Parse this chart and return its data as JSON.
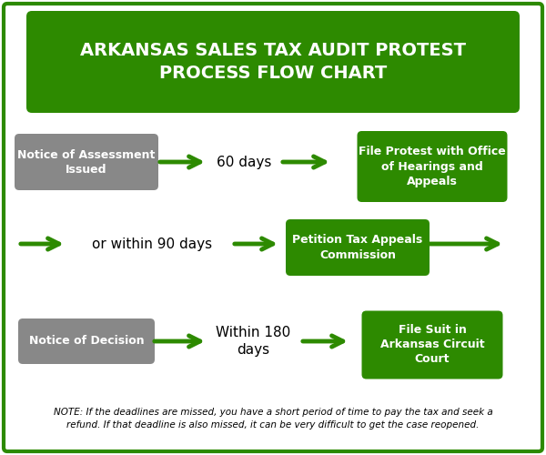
{
  "title": "ARKANSAS SALES TAX AUDIT PROTEST\nPROCESS FLOW CHART",
  "title_bg": "#2d8a00",
  "title_color": "#ffffff",
  "border_color": "#2d8a00",
  "bg_color": "#ffffff",
  "green": "#2d8a00",
  "gray": "#888888",
  "row1": {
    "box1_text": "Notice of Assessment\nIssued",
    "box1_color": "#888888",
    "label": "60 days",
    "box2_text": "File Protest with Office\nof Hearings and\nAppeals",
    "box2_color": "#2d8a00"
  },
  "row2": {
    "label": "or within 90 days",
    "box_text": "Petition Tax Appeals\nCommission",
    "box_color": "#2d8a00"
  },
  "row3": {
    "box1_text": "Notice of Decision",
    "box1_color": "#888888",
    "label": "Within 180\ndays",
    "box2_text": "File Suit in\nArkansas Circuit\nCourt",
    "box2_color": "#2d8a00"
  },
  "note": "NOTE: If the deadlines are missed, you have a short period of time to pay the tax and seek a\nrefund. If that deadline is also missed, it can be very difficult to get the case reopened."
}
